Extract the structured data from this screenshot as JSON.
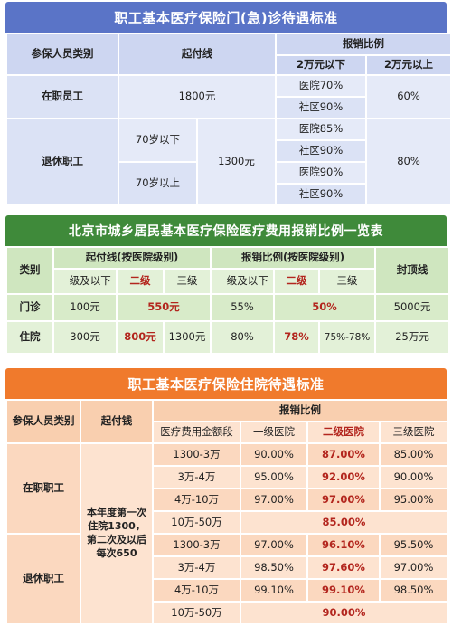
{
  "table1": {
    "title": "职工基本医疗保险门(急)诊待遇标准",
    "h_category": "参保人员类别",
    "h_deductible": "起付线",
    "h_ratio": "报销比例",
    "h_below": "2万元以下",
    "h_above": "2万元以上",
    "emp_label": "在职员工",
    "emp_deductible": "1800元",
    "emp_hospital": "医院70%",
    "emp_community": "社区90%",
    "emp_above": "60%",
    "ret_label": "退休职工",
    "ret_under70": "70岁以下",
    "ret_over70": "70岁以上",
    "ret_deductible": "1300元",
    "ret_u_hospital": "医院85%",
    "ret_u_community": "社区90%",
    "ret_o_hospital": "医院90%",
    "ret_o_community": "社区90%",
    "ret_above": "80%"
  },
  "table2": {
    "title": "北京市城乡居民基本医疗保险医疗费用报销比例一览表",
    "h_type": "类别",
    "h_deductible": "起付线(按医院级别)",
    "h_ratio": "报销比例(按医院级别)",
    "h_cap": "封顶线",
    "lv1": "一级及以下",
    "lv2": "二级",
    "lv3": "三级",
    "op_label": "门诊",
    "op_d1": "100元",
    "op_d23": "550元",
    "op_r1": "55%",
    "op_r23": "50%",
    "op_cap": "5000元",
    "ip_label": "住院",
    "ip_d1": "300元",
    "ip_d2": "800元",
    "ip_d3": "1300元",
    "ip_r1": "80%",
    "ip_r2": "78%",
    "ip_r3": "75%-78%",
    "ip_cap": "25万元"
  },
  "table3": {
    "title": "职工基本医疗保险住院待遇标准",
    "h_category": "参保人员类别",
    "h_deductible": "起付钱",
    "h_ratio": "报销比例",
    "h_amount": "医疗费用金额段",
    "h_lv1": "一级医院",
    "h_lv2": "二级医院",
    "h_lv3": "三级医院",
    "emp_label": "在职职工",
    "ret_label": "退休职工",
    "deductible_text": "本年度第一次住院1300，第二次及以后每次650",
    "emp_rows": [
      {
        "range": "1300-3万",
        "l1": "90.00%",
        "l2": "87.00%",
        "l3": "85.00%"
      },
      {
        "range": "3万-4万",
        "l1": "95.00%",
        "l2": "92.00%",
        "l3": "90.00%"
      },
      {
        "range": "4万-10万",
        "l1": "97.00%",
        "l2": "97.00%",
        "l3": "95.00%"
      }
    ],
    "emp_top_range": "10万-50万",
    "emp_top_rate": "85.00%",
    "ret_rows": [
      {
        "range": "1300-3万",
        "l1": "97.00%",
        "l2": "96.10%",
        "l3": "95.50%"
      },
      {
        "range": "3万-4万",
        "l1": "98.50%",
        "l2": "97.60%",
        "l3": "97.00%"
      },
      {
        "range": "4万-10万",
        "l1": "99.10%",
        "l2": "99.10%",
        "l3": "98.50%"
      }
    ],
    "ret_top_range": "10万-50万",
    "ret_top_rate": "90.00%"
  }
}
